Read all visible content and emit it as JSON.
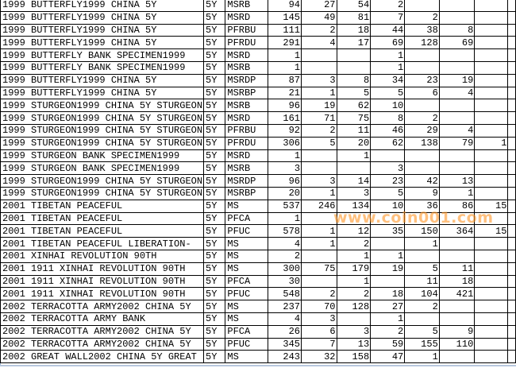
{
  "rows": [
    {
      "name": "1999 BUTTERFLY1999 CHINA 5Y",
      "term": "5Y",
      "code": "MSRB",
      "vals": [
        "94",
        "27",
        "54",
        "2",
        "",
        "",
        ""
      ]
    },
    {
      "name": "1999 BUTTERFLY1999 CHINA 5Y",
      "term": "5Y",
      "code": "MSRD",
      "vals": [
        "145",
        "49",
        "81",
        "7",
        "2",
        "",
        ""
      ]
    },
    {
      "name": "1999 BUTTERFLY1999 CHINA 5Y",
      "term": "5Y",
      "code": "PFRBU",
      "vals": [
        "111",
        "2",
        "18",
        "44",
        "38",
        "8",
        ""
      ]
    },
    {
      "name": "1999 BUTTERFLY1999 CHINA 5Y",
      "term": "5Y",
      "code": "PFRDU",
      "vals": [
        "291",
        "4",
        "17",
        "69",
        "128",
        "69",
        ""
      ]
    },
    {
      "name": "1999 BUTTERFLY BANK SPECIMEN1999",
      "term": "5Y",
      "code": "MSRD",
      "vals": [
        "1",
        "",
        "",
        "1",
        "",
        "",
        ""
      ]
    },
    {
      "name": "1999 BUTTERFLY BANK SPECIMEN1999",
      "term": "5Y",
      "code": "MSRB",
      "vals": [
        "1",
        "",
        "",
        "1",
        "",
        "",
        ""
      ]
    },
    {
      "name": "1999 BUTTERFLY1999 CHINA 5Y",
      "term": "5Y",
      "code": "MSRDP",
      "vals": [
        "87",
        "3",
        "8",
        "34",
        "23",
        "19",
        ""
      ]
    },
    {
      "name": "1999 BUTTERFLY1999 CHINA 5Y",
      "term": "5Y",
      "code": "MSRBP",
      "vals": [
        "21",
        "1",
        "5",
        "5",
        "6",
        "4",
        ""
      ]
    },
    {
      "name": "1999 STURGEON1999 CHINA 5Y STURGEON",
      "term": "5Y",
      "code": "MSRB",
      "vals": [
        "96",
        "19",
        "62",
        "10",
        "",
        "",
        ""
      ]
    },
    {
      "name": "1999 STURGEON1999 CHINA 5Y STURGEON",
      "term": "5Y",
      "code": "MSRD",
      "vals": [
        "161",
        "71",
        "75",
        "8",
        "2",
        "",
        ""
      ]
    },
    {
      "name": "1999 STURGEON1999 CHINA 5Y STURGEON",
      "term": "5Y",
      "code": "PFRBU",
      "vals": [
        "92",
        "2",
        "11",
        "46",
        "29",
        "4",
        ""
      ]
    },
    {
      "name": "1999 STURGEON1999 CHINA 5Y STURGEON",
      "term": "5Y",
      "code": "PFRDU",
      "vals": [
        "306",
        "5",
        "20",
        "62",
        "138",
        "79",
        "1"
      ]
    },
    {
      "name": "1999 STURGEON BANK SPECIMEN1999",
      "term": "5Y",
      "code": "MSRD",
      "vals": [
        "1",
        "",
        "1",
        "",
        "",
        "",
        ""
      ]
    },
    {
      "name": "1999 STURGEON BANK SPECIMEN1999",
      "term": "5Y",
      "code": "MSRB",
      "vals": [
        "3",
        "",
        "",
        "3",
        "",
        "",
        ""
      ]
    },
    {
      "name": "1999 STURGEON1999 CHINA 5Y STURGEON",
      "term": "5Y",
      "code": "MSRDP",
      "vals": [
        "96",
        "3",
        "14",
        "23",
        "42",
        "13",
        ""
      ]
    },
    {
      "name": "1999 STURGEON1999 CHINA 5Y STURGEON",
      "term": "5Y",
      "code": "MSRBP",
      "vals": [
        "20",
        "1",
        "3",
        "5",
        "9",
        "1",
        ""
      ]
    },
    {
      "name": "2001 TIBETAN PEACEFUL",
      "term": "5Y",
      "code": "MS",
      "vals": [
        "537",
        "246",
        "134",
        "10",
        "36",
        "86",
        "15"
      ]
    },
    {
      "name": "2001 TIBETAN PEACEFUL",
      "term": "5Y",
      "code": "PFCA",
      "vals": [
        "1",
        "",
        "",
        "",
        "",
        "",
        ""
      ]
    },
    {
      "name": "2001 TIBETAN PEACEFUL",
      "term": "5Y",
      "code": "PFUC",
      "vals": [
        "578",
        "1",
        "12",
        "35",
        "150",
        "364",
        "15"
      ]
    },
    {
      "name": "2001 TIBETAN PEACEFUL LIBERATION-",
      "term": "5Y",
      "code": "MS",
      "vals": [
        "4",
        "1",
        "2",
        "",
        "1",
        "",
        ""
      ]
    },
    {
      "name": "2001 XINHAI REVOLUTION 90TH",
      "term": "5Y",
      "code": "MS",
      "vals": [
        "2",
        "",
        "1",
        "1",
        "",
        "",
        ""
      ]
    },
    {
      "name": "2001 1911 XINHAI REVOLUTION 90TH",
      "term": "5Y",
      "code": "MS",
      "vals": [
        "300",
        "75",
        "179",
        "19",
        "5",
        "11",
        ""
      ]
    },
    {
      "name": "2001 1911 XINHAI REVOLUTION 90TH",
      "term": "5Y",
      "code": "PFCA",
      "vals": [
        "30",
        "",
        "1",
        "",
        "11",
        "18",
        ""
      ]
    },
    {
      "name": "2001 1911 XINHAI REVOLUTION 90TH",
      "term": "5Y",
      "code": "PFUC",
      "vals": [
        "548",
        "2",
        "2",
        "18",
        "104",
        "421",
        ""
      ]
    },
    {
      "name": "2002 TERRACOTTA ARMY2002 CHINA 5Y",
      "term": "5Y",
      "code": "MS",
      "vals": [
        "237",
        "70",
        "128",
        "27",
        "2",
        "",
        ""
      ]
    },
    {
      "name": "2002 TERRACOTTA ARMY BANK",
      "term": "5Y",
      "code": "MS",
      "vals": [
        "4",
        "3",
        "",
        "1",
        "",
        "",
        ""
      ]
    },
    {
      "name": "2002 TERRACOTTA ARMY2002 CHINA 5Y",
      "term": "5Y",
      "code": "PFCA",
      "vals": [
        "26",
        "6",
        "3",
        "2",
        "5",
        "9",
        ""
      ]
    },
    {
      "name": "2002 TERRACOTTA ARMY2002 CHINA 5Y",
      "term": "5Y",
      "code": "PFUC",
      "vals": [
        "345",
        "7",
        "13",
        "59",
        "155",
        "110",
        ""
      ]
    },
    {
      "name": "2002 GREAT WALL2002 CHINA 5Y GREAT",
      "term": "5Y",
      "code": "MS",
      "vals": [
        "243",
        "32",
        "158",
        "47",
        "1",
        "",
        ""
      ]
    }
  ],
  "watermark": "www.coin001.com",
  "colors": {
    "grid": "#000000",
    "watermark": "#ff9628"
  }
}
